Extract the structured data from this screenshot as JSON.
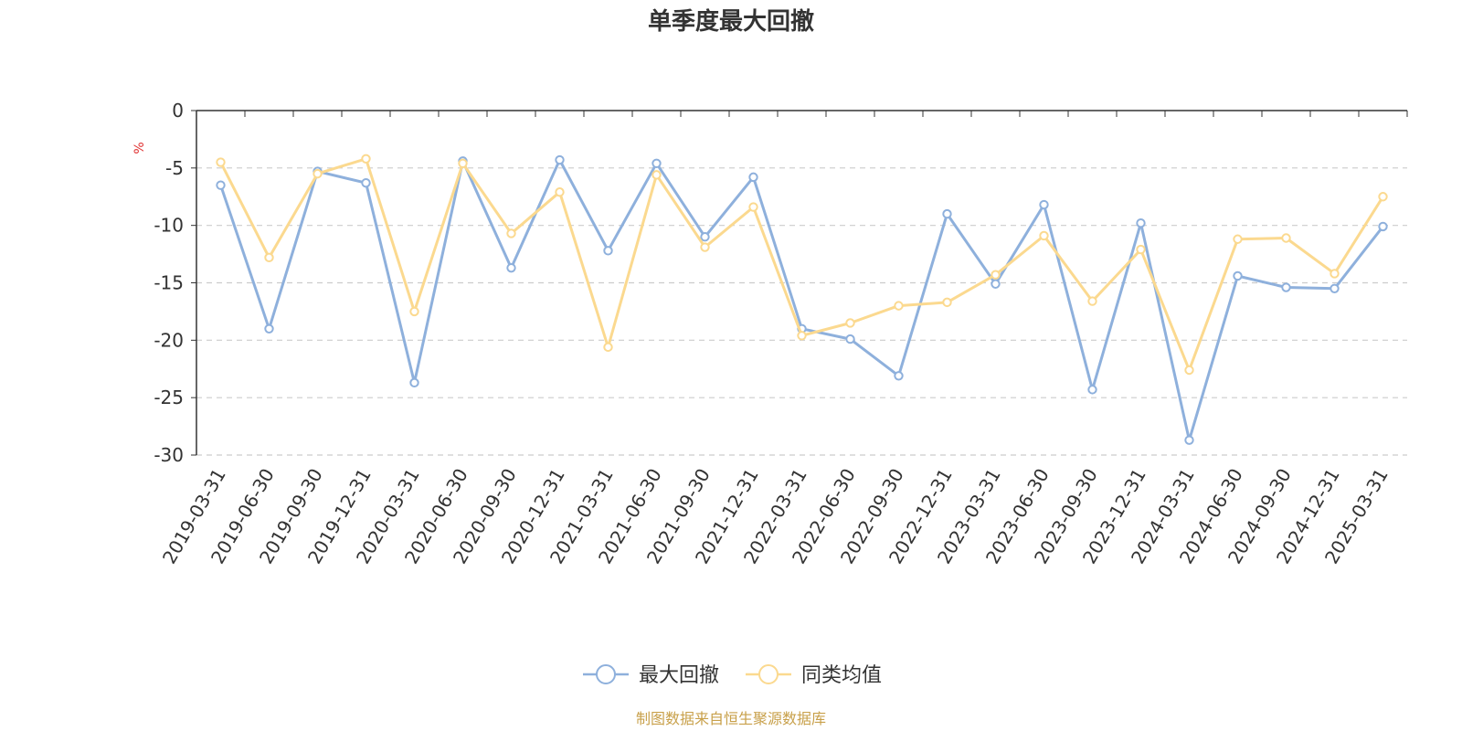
{
  "chart_data": {
    "type": "line",
    "title": "单季度最大回撤",
    "ylabel": "%",
    "ylim": [
      -30,
      0
    ],
    "yticks": [
      0,
      -5,
      -10,
      -15,
      -20,
      -25,
      -30
    ],
    "grid": true,
    "legend_position": "bottom-center",
    "categories": [
      "2019-03-31",
      "2019-06-30",
      "2019-09-30",
      "2019-12-31",
      "2020-03-31",
      "2020-06-30",
      "2020-09-30",
      "2020-12-31",
      "2021-03-31",
      "2021-06-30",
      "2021-09-30",
      "2021-12-31",
      "2022-03-31",
      "2022-06-30",
      "2022-09-30",
      "2022-12-31",
      "2023-03-31",
      "2023-06-30",
      "2023-09-30",
      "2023-12-31",
      "2024-03-31",
      "2024-06-30",
      "2024-09-30",
      "2024-12-31",
      "2025-03-31"
    ],
    "series": [
      {
        "name": "最大回撤",
        "color": "#8eb0dc",
        "values": [
          -6.5,
          -19.0,
          -5.3,
          -6.3,
          -23.7,
          -4.4,
          -13.7,
          -4.3,
          -12.2,
          -4.6,
          -11.0,
          -5.8,
          -19.0,
          -19.9,
          -23.1,
          -9.0,
          -15.1,
          -8.2,
          -24.3,
          -9.8,
          -28.7,
          -14.4,
          -15.4,
          -15.5,
          -10.1
        ]
      },
      {
        "name": "同类均值",
        "color": "#fbd98f",
        "values": [
          -4.5,
          -12.8,
          -5.5,
          -4.2,
          -17.5,
          -4.6,
          -10.7,
          -7.1,
          -20.6,
          -5.6,
          -11.9,
          -8.4,
          -19.6,
          -18.5,
          -17.0,
          -16.7,
          -14.3,
          -10.9,
          -16.6,
          -12.1,
          -22.6,
          -11.2,
          -11.1,
          -14.2,
          -7.5
        ]
      }
    ],
    "source": "制图数据来自恒生聚源数据库",
    "colors": {
      "source": "#c8a04a",
      "unit": "#e03030",
      "axis": "#333333",
      "grid": "#cccccc"
    }
  }
}
